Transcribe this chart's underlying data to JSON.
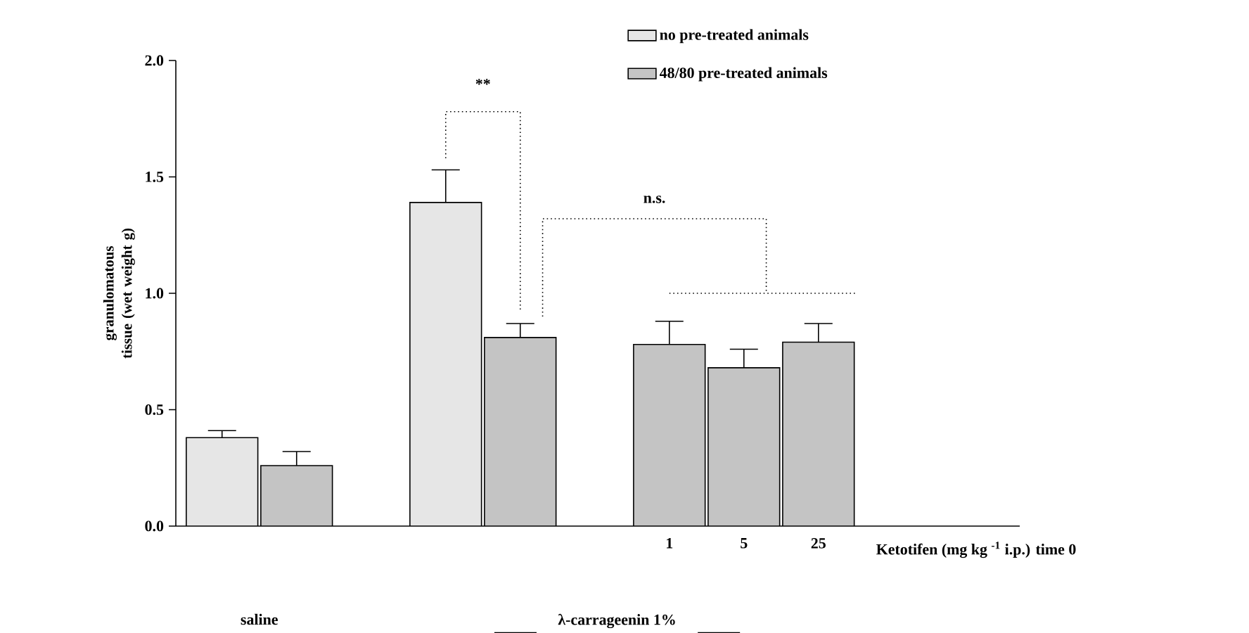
{
  "chart_data": {
    "type": "bar",
    "ylabel": "granulomatous tissue (wet weight g)",
    "categories": [
      null,
      null,
      null,
      null,
      null,
      null,
      "1",
      "5",
      "25"
    ],
    "series": [
      {
        "name": "no pre-treated animals",
        "color": "#e6e6e6",
        "values": [
          0.38,
          null,
          null,
          1.39,
          null,
          null,
          null,
          null,
          null
        ],
        "errors": [
          0.03,
          null,
          null,
          0.14,
          null,
          null,
          null,
          null,
          null
        ]
      },
      {
        "name": "48/80 pre-treated animals",
        "color": "#c4c4c4",
        "values": [
          null,
          0.26,
          null,
          null,
          0.81,
          null,
          0.78,
          0.68,
          0.79
        ],
        "errors": [
          null,
          0.06,
          null,
          null,
          0.06,
          null,
          0.1,
          0.08,
          0.08
        ]
      }
    ],
    "ylim": [
      0,
      2
    ],
    "yticks": [
      {
        "value": 0,
        "label": "0.0"
      },
      {
        "value": 0.5,
        "label": "0.5"
      },
      {
        "value": 1,
        "label": "1.0"
      },
      {
        "value": 1.5,
        "label": "1.5"
      },
      {
        "value": 2,
        "label": "2.0"
      }
    ],
    "legend": "top right",
    "annotations": [
      "**",
      "n.s.",
      "Ketotifen (mg kg $^{-1}$ i.p.) time 0",
      "saline",
      "λ-carrageenin 1%"
    ]
  }
}
